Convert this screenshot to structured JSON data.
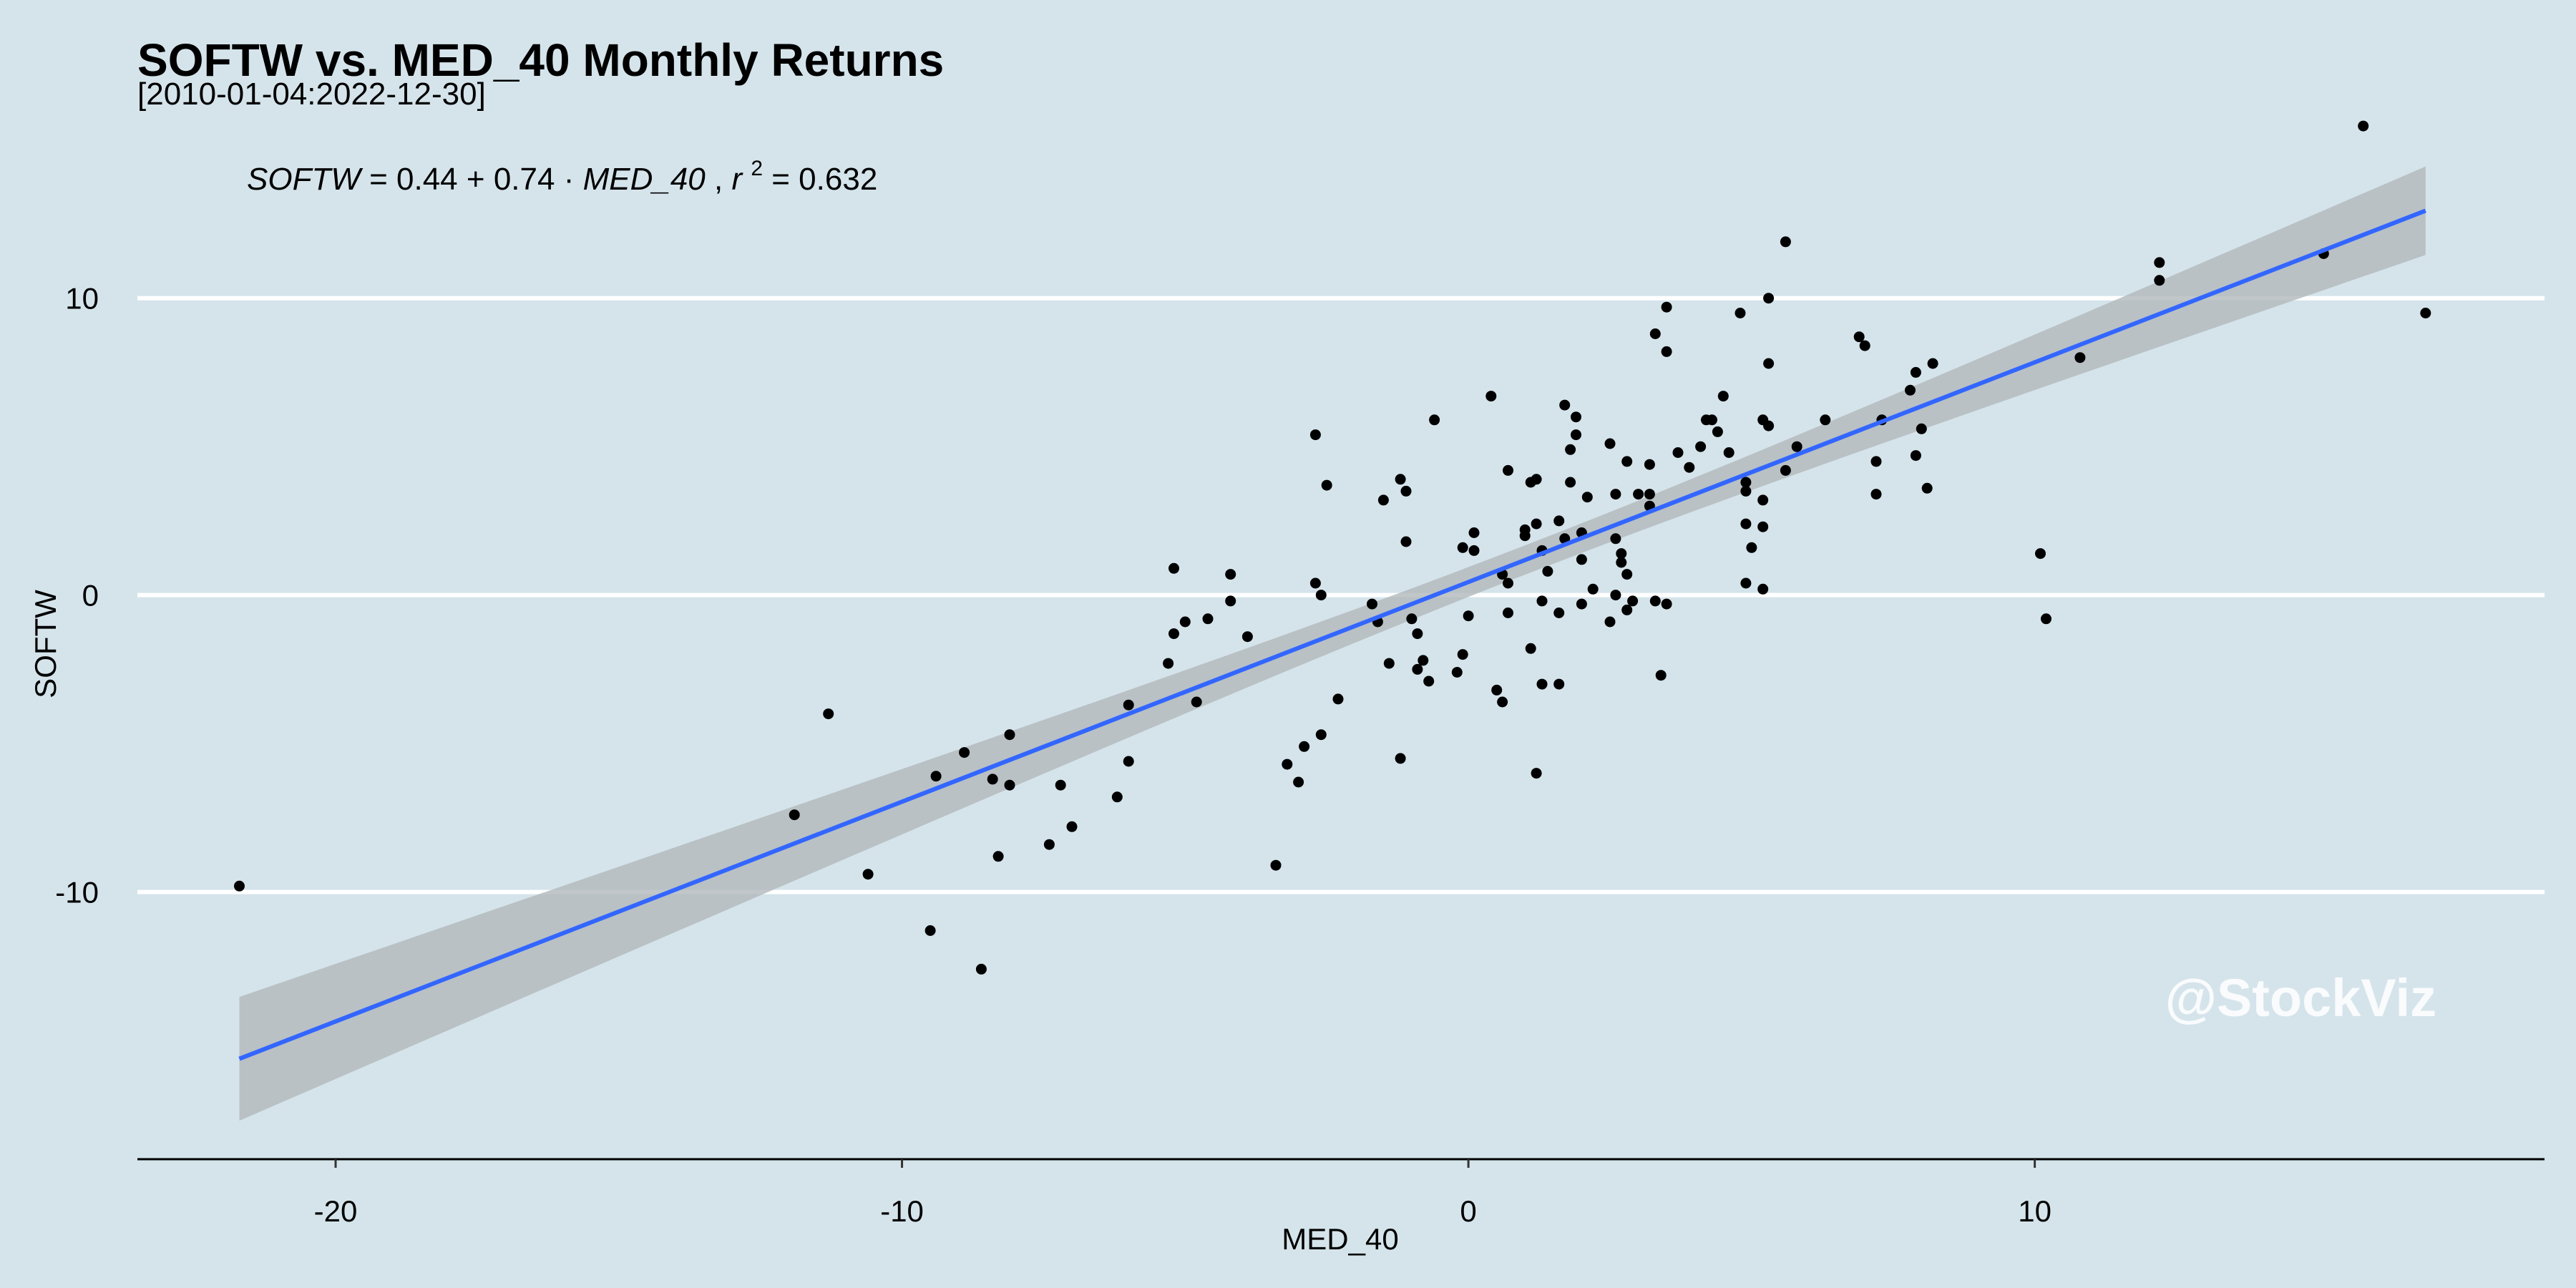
{
  "chart_data": {
    "type": "scatter",
    "title": "SOFTW vs. MED_40 Monthly Returns",
    "subtitle": "[2010-01-04:2022-12-30]",
    "xlabel": "MED_40",
    "ylabel": "SOFTW",
    "xlim": [
      -23.5,
      19
    ],
    "ylim": [
      -19,
      14.5
    ],
    "x_ticks": [
      -20,
      -10,
      0,
      10
    ],
    "x_tick_labels": [
      "-20",
      "-10",
      "0",
      "10"
    ],
    "y_ticks": [
      -10,
      0,
      10
    ],
    "y_tick_labels": [
      "-10",
      "0",
      "10"
    ],
    "grid": "horizontal major lines",
    "equation": {
      "y_name": "SOFTW",
      "intercept": "0.44",
      "slope": "0.74",
      "x_name": "MED_40",
      "r2_label": "r",
      "r2_exponent": "2",
      "r2_value": "= 0.632"
    },
    "fit": {
      "intercept": 0.44,
      "slope": 0.74,
      "x_range": [
        -21.7,
        16.9
      ],
      "line_color": "#3366ff",
      "band_color": "#b2b8bc"
    },
    "watermark": "@StockViz",
    "points": [
      [
        -21.7,
        -9.8
      ],
      [
        -11.9,
        -7.4
      ],
      [
        -11.3,
        -4.0
      ],
      [
        -10.6,
        -9.4
      ],
      [
        -9.5,
        -11.3
      ],
      [
        -9.4,
        -6.1
      ],
      [
        -8.9,
        -5.3
      ],
      [
        -8.6,
        -12.6
      ],
      [
        -8.4,
        -6.2
      ],
      [
        -8.3,
        -8.8
      ],
      [
        -8.1,
        -6.4
      ],
      [
        -8.1,
        -4.7
      ],
      [
        -7.4,
        -8.4
      ],
      [
        -7.2,
        -6.4
      ],
      [
        -7.0,
        -7.8
      ],
      [
        -6.2,
        -6.8
      ],
      [
        -6.0,
        -3.7
      ],
      [
        -6.0,
        -5.6
      ],
      [
        -5.3,
        -2.3
      ],
      [
        -5.2,
        0.9
      ],
      [
        -5.2,
        -1.3
      ],
      [
        -5.0,
        -0.9
      ],
      [
        -4.8,
        -3.6
      ],
      [
        -4.6,
        -0.8
      ],
      [
        -4.2,
        0.7
      ],
      [
        -4.2,
        -0.2
      ],
      [
        -3.9,
        -1.4
      ],
      [
        -3.4,
        -9.1
      ],
      [
        -3.2,
        -5.7
      ],
      [
        -3.0,
        -6.3
      ],
      [
        -2.9,
        -5.1
      ],
      [
        -2.7,
        5.4
      ],
      [
        -2.7,
        0.4
      ],
      [
        -2.6,
        0.0
      ],
      [
        -2.6,
        -4.7
      ],
      [
        -2.5,
        3.7
      ],
      [
        -2.3,
        -3.5
      ],
      [
        -1.7,
        -0.3
      ],
      [
        -1.6,
        -0.9
      ],
      [
        -1.5,
        3.2
      ],
      [
        -1.4,
        -2.3
      ],
      [
        -1.2,
        -5.5
      ],
      [
        -1.2,
        3.9
      ],
      [
        -1.1,
        3.5
      ],
      [
        -1.1,
        1.8
      ],
      [
        -1.0,
        -0.8
      ],
      [
        -0.9,
        -1.3
      ],
      [
        -0.9,
        -2.5
      ],
      [
        -0.8,
        -2.2
      ],
      [
        -0.7,
        -2.9
      ],
      [
        -0.6,
        5.9
      ],
      [
        -0.2,
        -2.6
      ],
      [
        -0.1,
        1.6
      ],
      [
        -0.1,
        -2.0
      ],
      [
        0.0,
        -0.7
      ],
      [
        0.1,
        1.5
      ],
      [
        0.1,
        2.1
      ],
      [
        0.4,
        6.7
      ],
      [
        0.5,
        -3.2
      ],
      [
        0.6,
        0.7
      ],
      [
        0.6,
        -3.6
      ],
      [
        0.7,
        0.4
      ],
      [
        0.7,
        -0.6
      ],
      [
        0.7,
        4.2
      ],
      [
        1.0,
        2.2
      ],
      [
        1.0,
        2.0
      ],
      [
        1.1,
        3.8
      ],
      [
        1.1,
        -1.8
      ],
      [
        1.2,
        -6.0
      ],
      [
        1.2,
        2.4
      ],
      [
        1.2,
        3.9
      ],
      [
        1.3,
        -0.2
      ],
      [
        1.3,
        1.5
      ],
      [
        1.3,
        -3.0
      ],
      [
        1.4,
        0.8
      ],
      [
        1.6,
        2.5
      ],
      [
        1.6,
        -0.6
      ],
      [
        1.6,
        -3.0
      ],
      [
        1.7,
        1.9
      ],
      [
        1.7,
        6.4
      ],
      [
        1.8,
        4.9
      ],
      [
        1.8,
        3.8
      ],
      [
        1.9,
        6.0
      ],
      [
        1.9,
        5.4
      ],
      [
        2.0,
        1.2
      ],
      [
        2.0,
        2.1
      ],
      [
        2.0,
        -0.3
      ],
      [
        2.1,
        3.3
      ],
      [
        2.2,
        0.2
      ],
      [
        2.5,
        5.1
      ],
      [
        2.5,
        -0.9
      ],
      [
        2.6,
        1.9
      ],
      [
        2.6,
        3.4
      ],
      [
        2.6,
        0.0
      ],
      [
        2.7,
        1.4
      ],
      [
        2.7,
        1.1
      ],
      [
        2.8,
        -0.5
      ],
      [
        2.8,
        0.7
      ],
      [
        2.8,
        4.5
      ],
      [
        2.9,
        -0.2
      ],
      [
        3.0,
        3.4
      ],
      [
        3.2,
        4.4
      ],
      [
        3.2,
        3.4
      ],
      [
        3.2,
        3.0
      ],
      [
        3.3,
        8.8
      ],
      [
        3.3,
        -0.2
      ],
      [
        3.4,
        -2.7
      ],
      [
        3.5,
        9.7
      ],
      [
        3.5,
        8.2
      ],
      [
        3.5,
        -0.3
      ],
      [
        3.7,
        4.8
      ],
      [
        3.9,
        4.3
      ],
      [
        4.1,
        5.0
      ],
      [
        4.2,
        5.9
      ],
      [
        4.3,
        5.9
      ],
      [
        4.4,
        5.5
      ],
      [
        4.5,
        6.7
      ],
      [
        4.6,
        4.8
      ],
      [
        4.8,
        9.5
      ],
      [
        4.9,
        3.8
      ],
      [
        4.9,
        3.5
      ],
      [
        4.9,
        2.4
      ],
      [
        4.9,
        0.4
      ],
      [
        5.0,
        1.6
      ],
      [
        5.2,
        0.2
      ],
      [
        5.2,
        2.3
      ],
      [
        5.2,
        5.9
      ],
      [
        5.2,
        3.2
      ],
      [
        5.3,
        5.7
      ],
      [
        5.3,
        10.0
      ],
      [
        5.3,
        7.8
      ],
      [
        5.6,
        11.9
      ],
      [
        5.6,
        4.2
      ],
      [
        5.8,
        5.0
      ],
      [
        6.3,
        5.9
      ],
      [
        6.9,
        8.7
      ],
      [
        7.0,
        8.4
      ],
      [
        7.2,
        4.5
      ],
      [
        7.2,
        3.4
      ],
      [
        7.3,
        5.9
      ],
      [
        7.8,
        6.9
      ],
      [
        7.9,
        4.7
      ],
      [
        7.9,
        7.5
      ],
      [
        8.0,
        5.6
      ],
      [
        8.1,
        3.6
      ],
      [
        8.2,
        7.8
      ],
      [
        10.1,
        1.4
      ],
      [
        10.2,
        -0.8
      ],
      [
        10.8,
        8.0
      ],
      [
        12.2,
        11.2
      ],
      [
        12.2,
        10.6
      ],
      [
        15.1,
        11.5
      ],
      [
        15.8,
        15.8
      ],
      [
        16.9,
        9.5
      ]
    ]
  }
}
